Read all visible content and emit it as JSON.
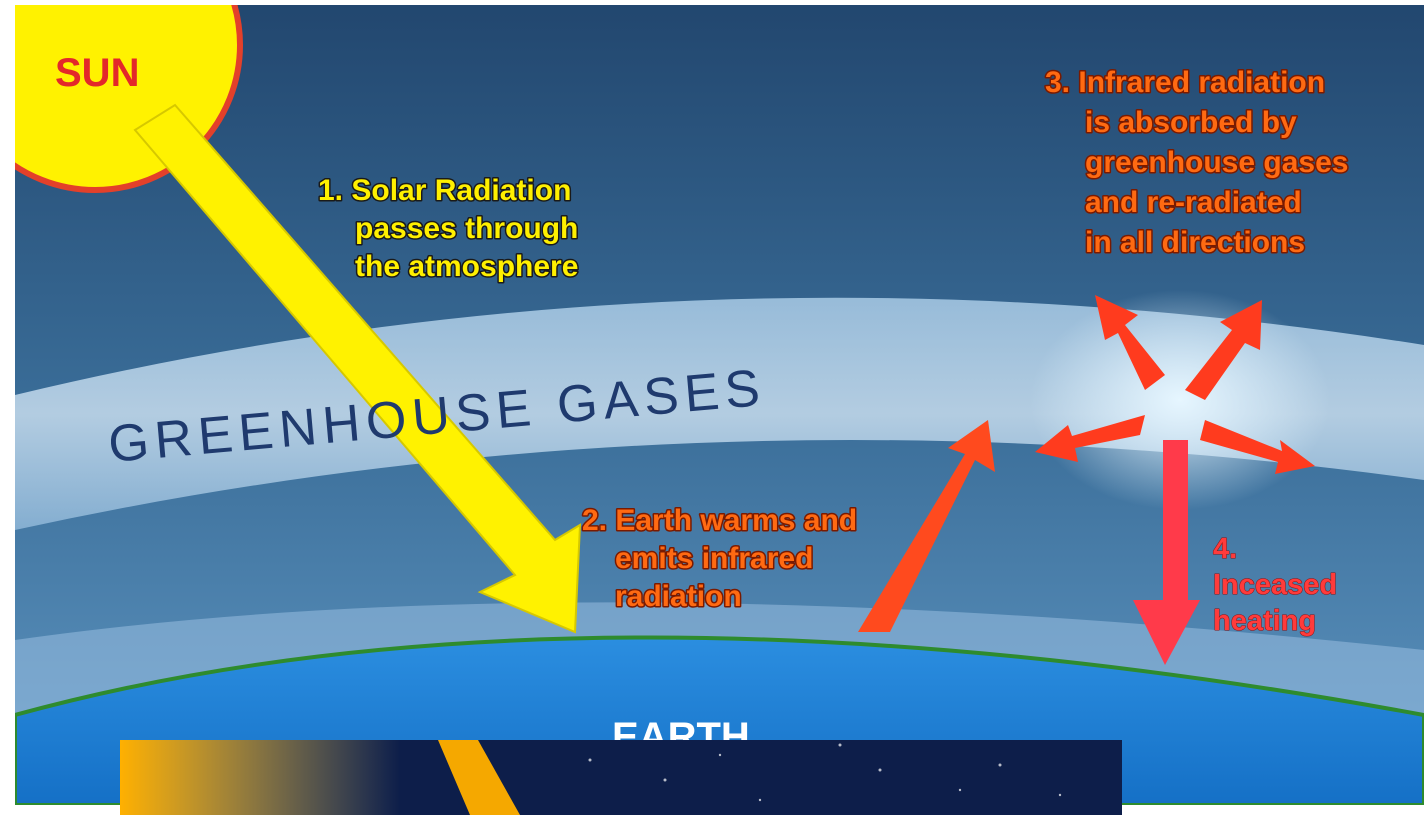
{
  "sun_label": "SUN",
  "steps": [
    {
      "lines": [
        "1. Solar Radiation",
        "passes through",
        "the atmosphere"
      ]
    },
    {
      "lines": [
        "2. Earth warms and",
        "emits infrared",
        "radiation"
      ]
    },
    {
      "lines": [
        "3. Infrared radiation",
        "is absorbed by",
        "greenhouse gases",
        "and re-radiated",
        "in all directions"
      ]
    },
    {
      "lines": [
        "4.",
        "Inceased",
        "heating"
      ]
    }
  ],
  "band_label": "GREENHOUSE GASES",
  "earth_label": "EARTH"
}
